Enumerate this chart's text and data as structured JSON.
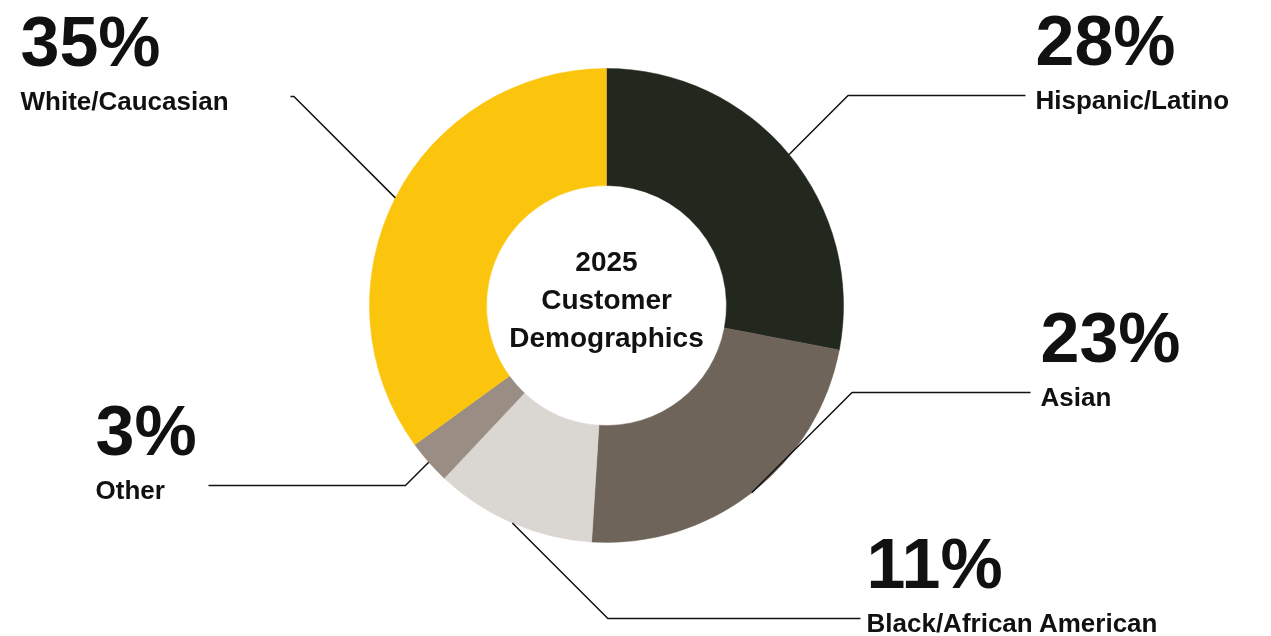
{
  "chart_data": {
    "type": "donut",
    "title": "2025 Customer Demographics",
    "categories": [
      "Hispanic/Latino",
      "Asian",
      "Black/African American",
      "Other",
      "White/Caucasian"
    ],
    "values": [
      28,
      23,
      11,
      3,
      35
    ],
    "colors": [
      "#23281f",
      "#6e645a",
      "#dad7d2",
      "#9a8d84",
      "#fcc50d"
    ],
    "value_labels": [
      "28%",
      "23%",
      "11%",
      "3%",
      "35%"
    ]
  }
}
